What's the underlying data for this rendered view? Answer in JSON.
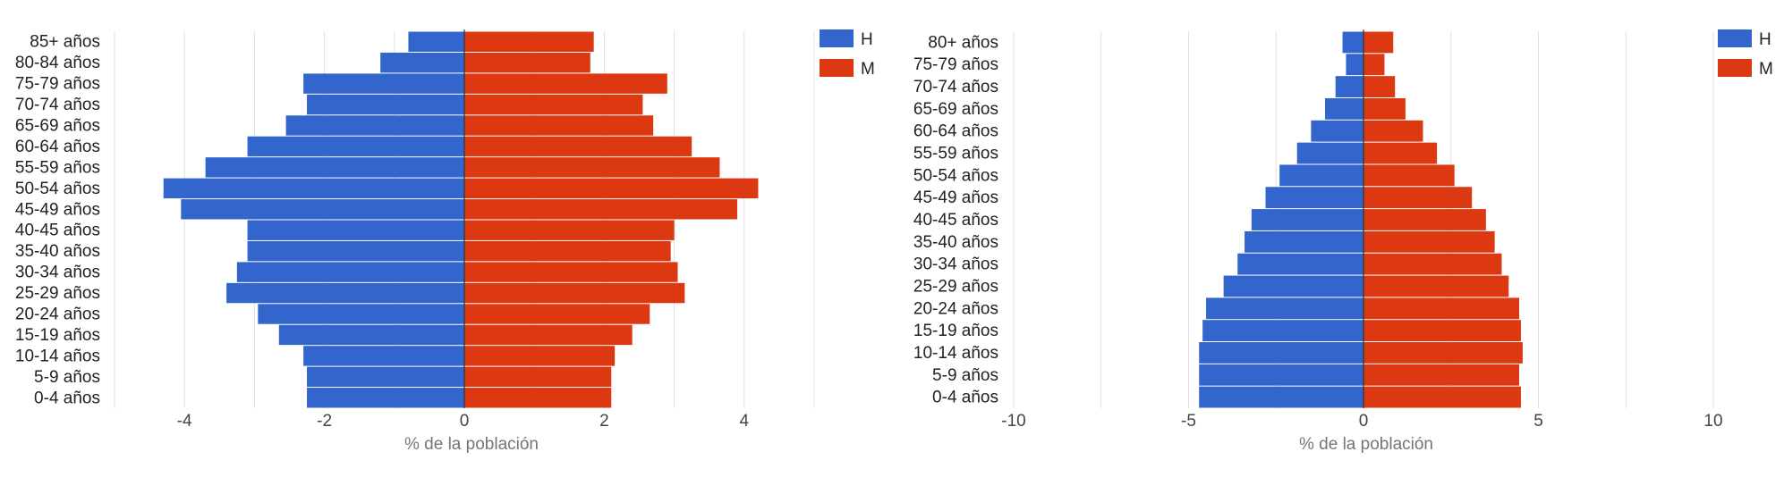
{
  "colors": {
    "H": "#3366cc",
    "M": "#dc3912",
    "grid": "#e0e0e0",
    "zero": "#333333"
  },
  "chart_data": [
    {
      "type": "bar",
      "orientation": "horizontal",
      "xlabel": "% de la población",
      "xlim": [
        -5,
        5
      ],
      "xticks": [
        -4,
        -2,
        0,
        2,
        4
      ],
      "categories": [
        "85+ años",
        "80-84 años",
        "75-79 años",
        "70-74 años",
        "65-69 años",
        "60-64 años",
        "55-59 años",
        "50-54 años",
        "45-49 años",
        "40-45 años",
        "35-40 años",
        "30-34 años",
        "25-29 años",
        "20-24 años",
        "15-19 años",
        "10-14 años",
        "5-9 años",
        "0-4 años"
      ],
      "series": [
        {
          "name": "H",
          "values": [
            -0.8,
            -1.2,
            -2.3,
            -2.25,
            -2.55,
            -3.1,
            -3.7,
            -4.3,
            -4.05,
            -3.1,
            -3.1,
            -3.25,
            -3.4,
            -2.95,
            -2.65,
            -2.3,
            -2.25,
            -2.25
          ]
        },
        {
          "name": "M",
          "values": [
            1.85,
            1.8,
            2.9,
            2.55,
            2.7,
            3.25,
            3.65,
            4.2,
            3.9,
            3.0,
            2.95,
            3.05,
            3.15,
            2.65,
            2.4,
            2.15,
            2.1,
            2.1
          ]
        }
      ],
      "legend": "top-right"
    },
    {
      "type": "bar",
      "orientation": "horizontal",
      "xlabel": "% de la población",
      "xlim": [
        -10,
        10
      ],
      "xticks": [
        -10,
        -5,
        0,
        5,
        10
      ],
      "categories": [
        "80+ años",
        "75-79 años",
        "70-74 años",
        "65-69 años",
        "60-64 años",
        "55-59 años",
        "50-54 años",
        "45-49 años",
        "40-45 años",
        "35-40 años",
        "30-34 años",
        "25-29 años",
        "20-24 años",
        "15-19 años",
        "10-14 años",
        "5-9 años",
        "0-4 años"
      ],
      "series": [
        {
          "name": "H",
          "values": [
            -0.6,
            -0.5,
            -0.8,
            -1.1,
            -1.5,
            -1.9,
            -2.4,
            -2.8,
            -3.2,
            -3.4,
            -3.6,
            -4.0,
            -4.5,
            -4.6,
            -4.7,
            -4.7,
            -4.7
          ]
        },
        {
          "name": "M",
          "values": [
            0.85,
            0.6,
            0.9,
            1.2,
            1.7,
            2.1,
            2.6,
            3.1,
            3.5,
            3.75,
            3.95,
            4.15,
            4.45,
            4.5,
            4.55,
            4.45,
            4.5
          ]
        }
      ],
      "legend": "top-right"
    }
  ]
}
